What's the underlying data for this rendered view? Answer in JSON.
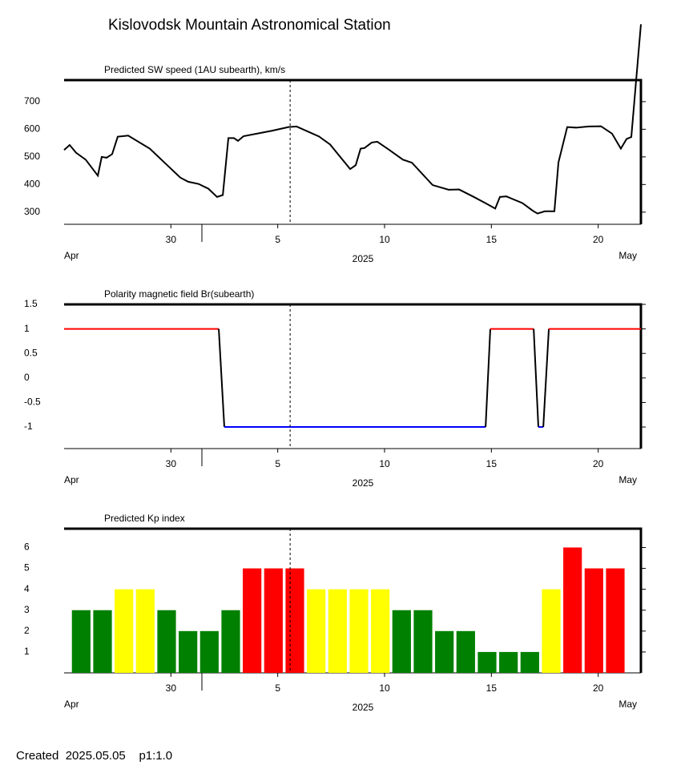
{
  "title": "Kislovodsk Mountain Astronomical Station",
  "footer": "Created  2025.05.05    p1:1.0",
  "chart_data": [
    {
      "type": "line",
      "title": "Predicted SW speed (1AU subearth), km/s",
      "color": "#000000",
      "x": [
        25,
        25.26,
        25.56,
        26.01,
        26.58,
        26.76,
        26.99,
        27.25,
        27.51,
        28.0,
        29.01,
        30.44,
        30.81,
        31.3,
        31.75,
        32.16,
        32.43,
        32.69,
        32.95,
        33.14,
        33.4,
        34.75,
        35.5,
        35.88,
        36.93,
        37.45,
        38.39,
        38.65,
        38.88,
        39.06,
        39.4,
        39.66,
        40.19,
        40.86,
        41.28,
        42.25,
        43.0,
        43.49,
        44.13,
        44.69,
        45.18,
        45.4,
        45.7,
        46.45,
        46.94,
        47.16,
        47.5,
        47.95,
        48.14,
        48.55,
        48.96,
        49.56,
        50.13,
        50.65,
        51.06,
        51.33,
        51.55,
        52.0
      ],
      "values": [
        525,
        543,
        515,
        490,
        432,
        500,
        497,
        510,
        573,
        577,
        530,
        425,
        410,
        402,
        385,
        355,
        362,
        568,
        568,
        558,
        575,
        595,
        608,
        610,
        574,
        545,
        456,
        470,
        530,
        532,
        552,
        555,
        527,
        490,
        479,
        398,
        381,
        382,
        357,
        334,
        313,
        355,
        357,
        333,
        305,
        295,
        303,
        303,
        480,
        608,
        606,
        610,
        611,
        584,
        530,
        565,
        572,
        980
      ],
      "xlim": [
        25,
        52
      ],
      "xticks": [
        30,
        {
          "value": 35,
          "label": "5"
        },
        {
          "value": 40,
          "label": "10"
        },
        {
          "value": 45,
          "label": "15"
        },
        {
          "value": 50,
          "label": "20"
        }
      ],
      "ylim": [
        256,
        778
      ],
      "yticks": [
        300,
        400,
        500,
        600,
        700
      ],
      "marker_x": 35.58,
      "month_left": "Apr",
      "month_right": "May",
      "year": "2025"
    },
    {
      "type": "polarity",
      "title": "Polarity magnetic field  Br(subearth)",
      "positive_color": "#ff0000",
      "negative_color": "#0000ff",
      "transition_color": "#000000",
      "x": [
        25,
        32.24,
        32.5,
        44.73,
        44.95,
        46.98,
        47.2,
        47.43,
        47.69,
        52.0
      ],
      "values": [
        1,
        1,
        -1,
        -1,
        1,
        1,
        -1,
        -1,
        1,
        1
      ],
      "xlim": [
        25,
        52
      ],
      "xticks": [
        30,
        {
          "value": 35,
          "label": "5"
        },
        {
          "value": 40,
          "label": "10"
        },
        {
          "value": 45,
          "label": "15"
        },
        {
          "value": 50,
          "label": "20"
        }
      ],
      "ylim": [
        -1.44,
        1.5
      ],
      "yticks": [
        1.5,
        1,
        0.5,
        0,
        -0.5,
        -1
      ],
      "marker_x": 35.58,
      "month_left": "Apr",
      "month_right": "May",
      "year": "2025"
    },
    {
      "type": "bar",
      "title": "Predicted Kp index",
      "x": [
        25.8,
        26.8,
        27.8,
        28.8,
        29.8,
        30.8,
        31.8,
        32.8,
        33.8,
        34.8,
        35.8,
        36.8,
        37.8,
        38.8,
        39.8,
        40.8,
        41.8,
        42.8,
        43.8,
        44.8,
        45.8,
        46.8,
        47.8,
        48.8,
        49.8,
        50.8
      ],
      "values": [
        3,
        3,
        4,
        4,
        3,
        2,
        2,
        3,
        5,
        5,
        5,
        4,
        4,
        4,
        4,
        3,
        3,
        2,
        2,
        1,
        1,
        1,
        4,
        6,
        5,
        5
      ],
      "colors": [
        "#008000",
        "#008000",
        "#ffff00",
        "#ffff00",
        "#008000",
        "#008000",
        "#008000",
        "#008000",
        "#ff0000",
        "#ff0000",
        "#ff0000",
        "#ffff00",
        "#ffff00",
        "#ffff00",
        "#ffff00",
        "#008000",
        "#008000",
        "#008000",
        "#008000",
        "#008000",
        "#008000",
        "#008000",
        "#ffff00",
        "#ff0000",
        "#ff0000",
        "#ff0000"
      ],
      "xlim": [
        25,
        52
      ],
      "xticks": [
        30,
        {
          "value": 35,
          "label": "5"
        },
        {
          "value": 40,
          "label": "10"
        },
        {
          "value": 45,
          "label": "15"
        },
        {
          "value": 50,
          "label": "20"
        }
      ],
      "ylim": [
        0,
        6.9
      ],
      "yticks": [
        1,
        2,
        3,
        4,
        5,
        6
      ],
      "marker_x": 35.58,
      "month_left": "Apr",
      "month_right": "May",
      "year": "2025"
    }
  ]
}
